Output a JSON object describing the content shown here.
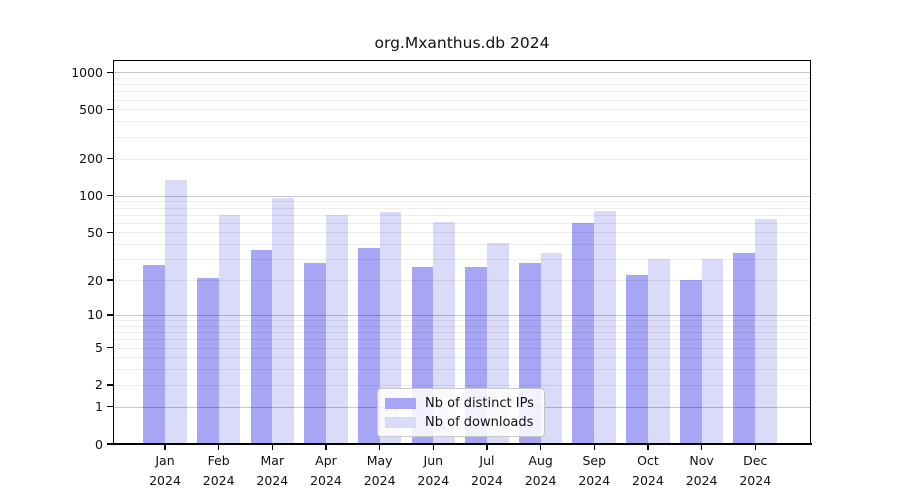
{
  "chart_data": {
    "type": "bar",
    "title": "org.Mxanthus.db 2024",
    "categories": [
      "Jan\n2024",
      "Feb\n2024",
      "Mar\n2024",
      "Apr\n2024",
      "May\n2024",
      "Jun\n2024",
      "Jul\n2024",
      "Aug\n2024",
      "Sep\n2024",
      "Oct\n2024",
      "Nov\n2024",
      "Dec\n2024"
    ],
    "series": [
      {
        "name": "Nb of distinct IPs",
        "color": "#a6a6f5",
        "values": [
          27,
          21,
          36,
          28,
          37,
          26,
          26,
          28,
          60,
          22,
          20,
          34
        ]
      },
      {
        "name": "Nb of downloads",
        "color": "#dadaf9",
        "values": [
          135,
          70,
          96,
          70,
          73,
          61,
          41,
          34,
          75,
          30,
          30,
          65
        ]
      }
    ],
    "xlabel": "",
    "ylabel": "",
    "yticks": [
      0,
      1,
      2,
      5,
      10,
      20,
      50,
      100,
      200,
      500,
      1000
    ],
    "scale": "log1p",
    "ylim": [
      0,
      1250
    ],
    "grid": true,
    "major_grid_values": [
      1,
      10,
      100,
      1000
    ],
    "minor_grid_values": [
      2,
      3,
      4,
      5,
      6,
      7,
      8,
      9,
      20,
      30,
      40,
      50,
      60,
      70,
      80,
      90,
      200,
      300,
      400,
      500,
      600,
      700,
      800,
      900
    ],
    "legend_position": "lower center",
    "colors": {
      "axis": "#000000",
      "major_grid": "rgba(0,0,0,0.22)",
      "minor_grid": "rgba(0,0,0,0.07)",
      "background": "#ffffff"
    }
  }
}
